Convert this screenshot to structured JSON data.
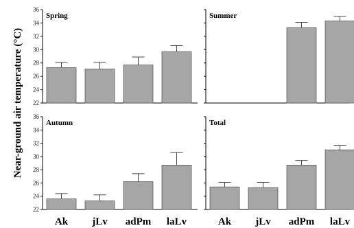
{
  "chart_data": {
    "type": "bar",
    "ylabel": "Near-ground air temperature (°C)",
    "categories": [
      "Ak",
      "jLv",
      "adPm",
      "laLv"
    ],
    "panels": [
      {
        "title": "Spring",
        "ylim": [
          22,
          36
        ],
        "yticks": [
          "22",
          "24",
          "26",
          "28",
          "30",
          "32",
          "34",
          "36"
        ],
        "values": [
          27.3,
          27.1,
          27.7,
          29.7
        ],
        "errors": [
          0.8,
          1.0,
          1.2,
          0.9
        ]
      },
      {
        "title": "Summer",
        "ylim": [
          22,
          36
        ],
        "yticks": [
          "22",
          "24",
          "26",
          "28",
          "30",
          "32",
          "34",
          "36"
        ],
        "values": [
          null,
          null,
          33.3,
          34.3
        ],
        "errors": [
          null,
          null,
          0.8,
          0.7
        ]
      },
      {
        "title": "Autumn",
        "ylim": [
          22,
          36
        ],
        "yticks": [
          "22",
          "24",
          "26",
          "28",
          "30",
          "32",
          "34",
          "36"
        ],
        "values": [
          23.6,
          23.3,
          26.2,
          28.7
        ],
        "errors": [
          0.8,
          0.9,
          1.2,
          1.9
        ]
      },
      {
        "title": "Total",
        "ylim": [
          22,
          36
        ],
        "yticks": [
          "22",
          "24",
          "26",
          "28",
          "30",
          "32",
          "34",
          "36"
        ],
        "values": [
          25.4,
          25.3,
          28.7,
          31.0
        ],
        "errors": [
          0.7,
          0.8,
          0.7,
          0.7
        ]
      }
    ]
  },
  "colors": {
    "bar": "#a6a6a6"
  }
}
